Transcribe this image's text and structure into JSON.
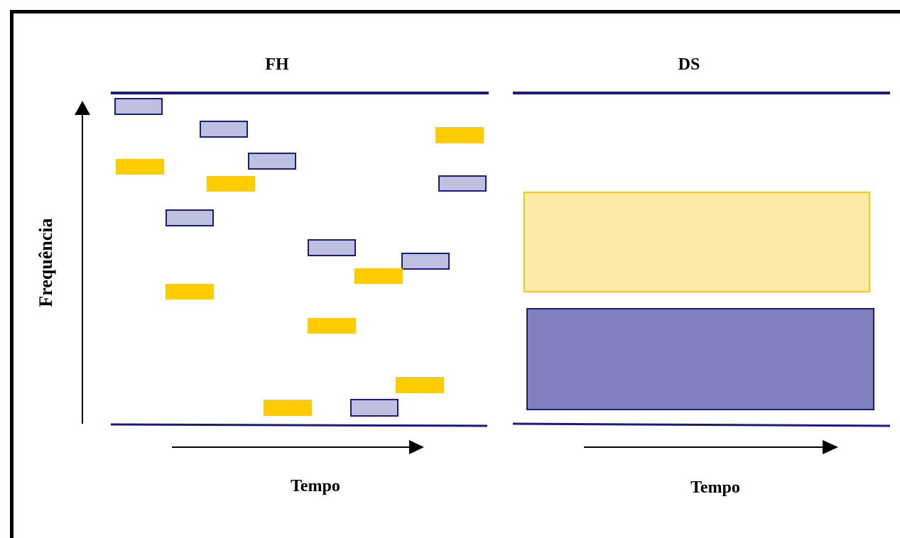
{
  "panels": {
    "fh": {
      "title": "FH",
      "x_axis_label": "Tempo"
    },
    "ds": {
      "title": "DS",
      "x_axis_label": "Tempo"
    }
  },
  "y_axis_label": "Frequência",
  "colors": {
    "band_line": "#1A1A80",
    "lavender_fill": "#BFBFDF",
    "lavender_stroke": "#1A1A80",
    "yellow_fill": "#FFCC00",
    "ds_yellow_fill": "#FCEBA7",
    "ds_yellow_stroke": "#F5C813",
    "ds_blue_fill": "#8080BF",
    "ds_blue_stroke": "#1A1A80"
  }
}
